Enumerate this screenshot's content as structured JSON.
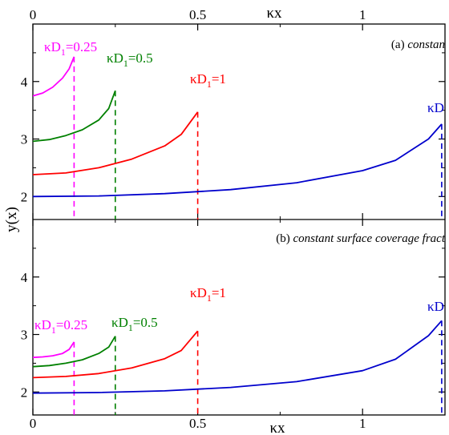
{
  "chart_data": {
    "type": "line",
    "x_label": "κx",
    "y_label": "y(x)",
    "x_ticks": [
      "0",
      "0.5",
      "1"
    ],
    "x_tick_values": [
      0,
      0.5,
      1
    ],
    "xlim": [
      0,
      1.25
    ],
    "panels": [
      {
        "id": "a",
        "title_prefix": "(a) ",
        "title_italic": "constan",
        "ylim": [
          1.6,
          5.0
        ],
        "y_ticks": [
          "2",
          "3",
          "4"
        ],
        "y_tick_values": [
          2,
          3,
          4
        ],
        "series": [
          {
            "name_kd": "κD",
            "name_sub": "1",
            "name_val": "=0.25",
            "color": "#ff00ff",
            "end_x": 0.125,
            "x": [
              0,
              0.03,
              0.06,
              0.09,
              0.11,
              0.125
            ],
            "y": [
              3.75,
              3.8,
              3.9,
              4.06,
              4.22,
              4.43
            ]
          },
          {
            "name_kd": "κD",
            "name_sub": "1",
            "name_val": "=0.5",
            "color": "#008000",
            "end_x": 0.25,
            "x": [
              0,
              0.05,
              0.1,
              0.15,
              0.2,
              0.23,
              0.25
            ],
            "y": [
              2.96,
              2.99,
              3.06,
              3.16,
              3.33,
              3.53,
              3.84
            ]
          },
          {
            "name_kd": "κD",
            "name_sub": "1",
            "name_val": "=1",
            "color": "#ff0000",
            "end_x": 0.5,
            "x": [
              0,
              0.1,
              0.2,
              0.3,
              0.4,
              0.45,
              0.5
            ],
            "y": [
              2.38,
              2.41,
              2.5,
              2.65,
              2.88,
              3.08,
              3.47
            ]
          },
          {
            "name_kd": "κD",
            "name_sub": "",
            "name_val": "",
            "color": "#0000cc",
            "end_x": 1.24,
            "x": [
              0,
              0.2,
              0.4,
              0.6,
              0.8,
              1.0,
              1.1,
              1.2,
              1.24
            ],
            "y": [
              2.0,
              2.01,
              2.05,
              2.12,
              2.24,
              2.45,
              2.63,
              3.0,
              3.26
            ]
          }
        ]
      },
      {
        "id": "b",
        "title_prefix": "(b) ",
        "title_italic": "constant surface coverage fract",
        "ylim": [
          1.6,
          5.0
        ],
        "y_ticks": [
          "2",
          "3",
          "4"
        ],
        "y_tick_values": [
          2,
          3,
          4
        ],
        "series": [
          {
            "name_kd": "κD",
            "name_sub": "1",
            "name_val": "=0.25",
            "color": "#ff00ff",
            "end_x": 0.125,
            "x": [
              0,
              0.03,
              0.06,
              0.09,
              0.11,
              0.125
            ],
            "y": [
              2.6,
              2.61,
              2.63,
              2.67,
              2.74,
              2.87
            ]
          },
          {
            "name_kd": "κD",
            "name_sub": "1",
            "name_val": "=0.5",
            "color": "#008000",
            "end_x": 0.25,
            "x": [
              0,
              0.05,
              0.1,
              0.15,
              0.2,
              0.23,
              0.25
            ],
            "y": [
              2.44,
              2.46,
              2.5,
              2.56,
              2.67,
              2.78,
              2.97
            ]
          },
          {
            "name_kd": "κD",
            "name_sub": "1",
            "name_val": "=1",
            "color": "#ff0000",
            "end_x": 0.5,
            "x": [
              0,
              0.1,
              0.2,
              0.3,
              0.4,
              0.45,
              0.5
            ],
            "y": [
              2.25,
              2.27,
              2.32,
              2.42,
              2.58,
              2.72,
              3.06
            ]
          },
          {
            "name_kd": "κD",
            "name_sub": "",
            "name_val": "",
            "color": "#0000cc",
            "end_x": 1.24,
            "x": [
              0,
              0.2,
              0.4,
              0.6,
              0.8,
              1.0,
              1.1,
              1.2,
              1.24
            ],
            "y": [
              1.98,
              1.99,
              2.02,
              2.08,
              2.18,
              2.37,
              2.57,
              2.98,
              3.24
            ]
          }
        ]
      }
    ]
  }
}
